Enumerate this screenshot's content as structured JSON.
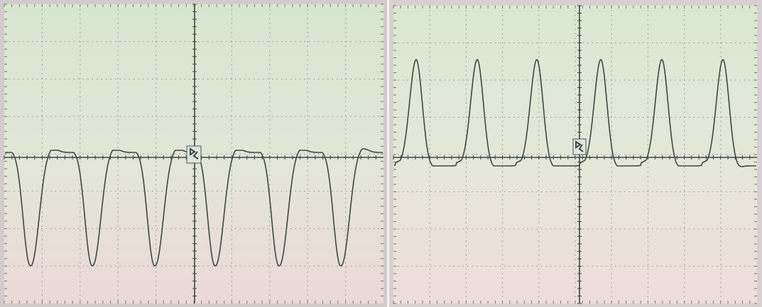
{
  "image": {
    "description_colors": {
      "screen_bg_top": "#dbe7d3",
      "screen_bg_bottom": "#ead8d6",
      "bezel": "#cfc7c7",
      "grid": "#7c8a7f",
      "trace": "#3d4a47",
      "axis": "#3c4744"
    }
  },
  "panels": [
    {
      "name": "left-oscilloscope",
      "waveform": "negative-pulses",
      "pulse_count": 6
    },
    {
      "name": "right-oscilloscope",
      "waveform": "positive-pulses",
      "pulse_count": 6
    }
  ]
}
